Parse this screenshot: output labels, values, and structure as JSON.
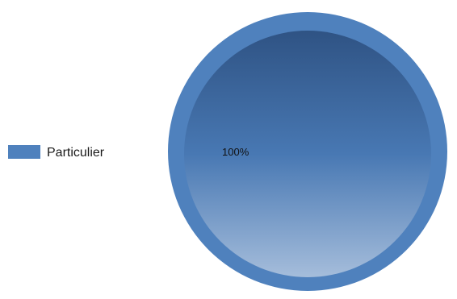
{
  "chart_data": {
    "type": "pie",
    "title": "",
    "categories": [
      "Particulier"
    ],
    "values": [
      100
    ],
    "data_labels": [
      "100%"
    ],
    "legend_position": "left",
    "colors": {
      "slice_rim": "#4f81bd",
      "slice_fill_top": "#2f5384",
      "slice_fill_mid": "#4878b3",
      "slice_fill_bottom": "#a5bddb",
      "legend_swatch": "#4f81bd"
    }
  }
}
